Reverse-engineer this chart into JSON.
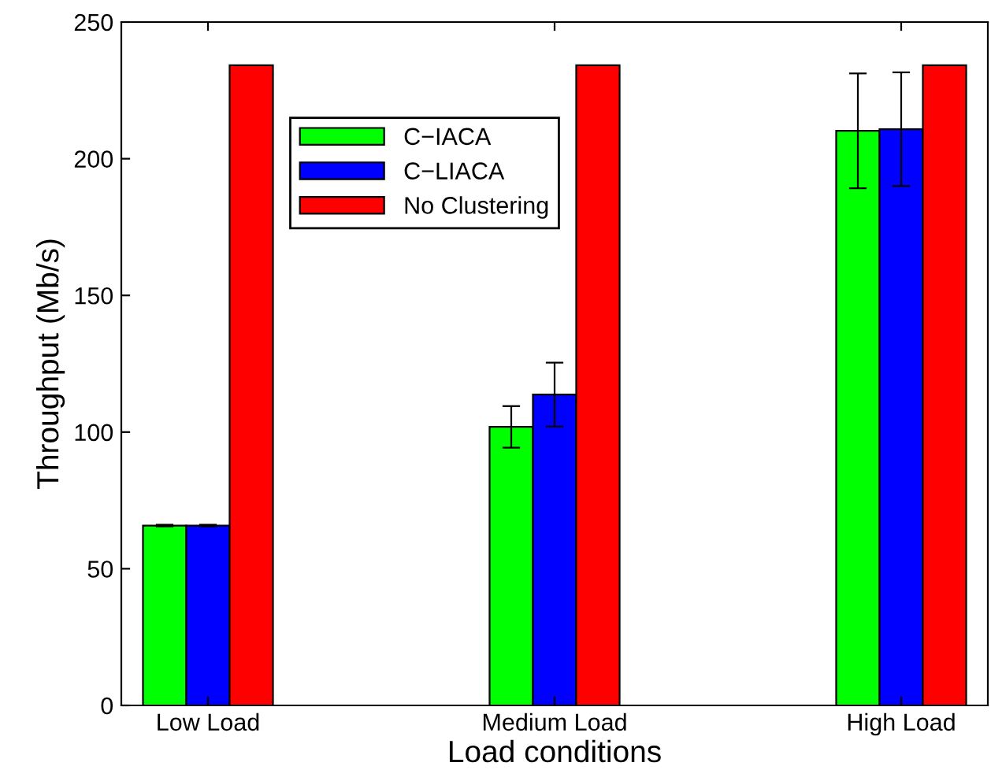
{
  "chart_data": {
    "type": "bar",
    "xlabel": "Load conditions",
    "ylabel": "Throughput (Mb/s)",
    "categories": [
      "Low Load",
      "Medium Load",
      "High Load"
    ],
    "series": [
      {
        "name": "C−IACA",
        "color": "#00ff00",
        "values": [
          65.8,
          101.9,
          210.2
        ],
        "errors": [
          0.3,
          7.6,
          21
        ]
      },
      {
        "name": "C−LIACA",
        "color": "#0000ff",
        "values": [
          65.8,
          113.7,
          210.8
        ],
        "errors": [
          0.3,
          11.7,
          20.8
        ]
      },
      {
        "name": "No Clustering",
        "color": "#ff0000",
        "values": [
          234.2,
          234.2,
          234.2
        ]
      }
    ],
    "ylim": [
      0,
      250
    ],
    "yticks": [
      0,
      50,
      100,
      150,
      200,
      250
    ],
    "grid": false,
    "legend": "top left"
  }
}
